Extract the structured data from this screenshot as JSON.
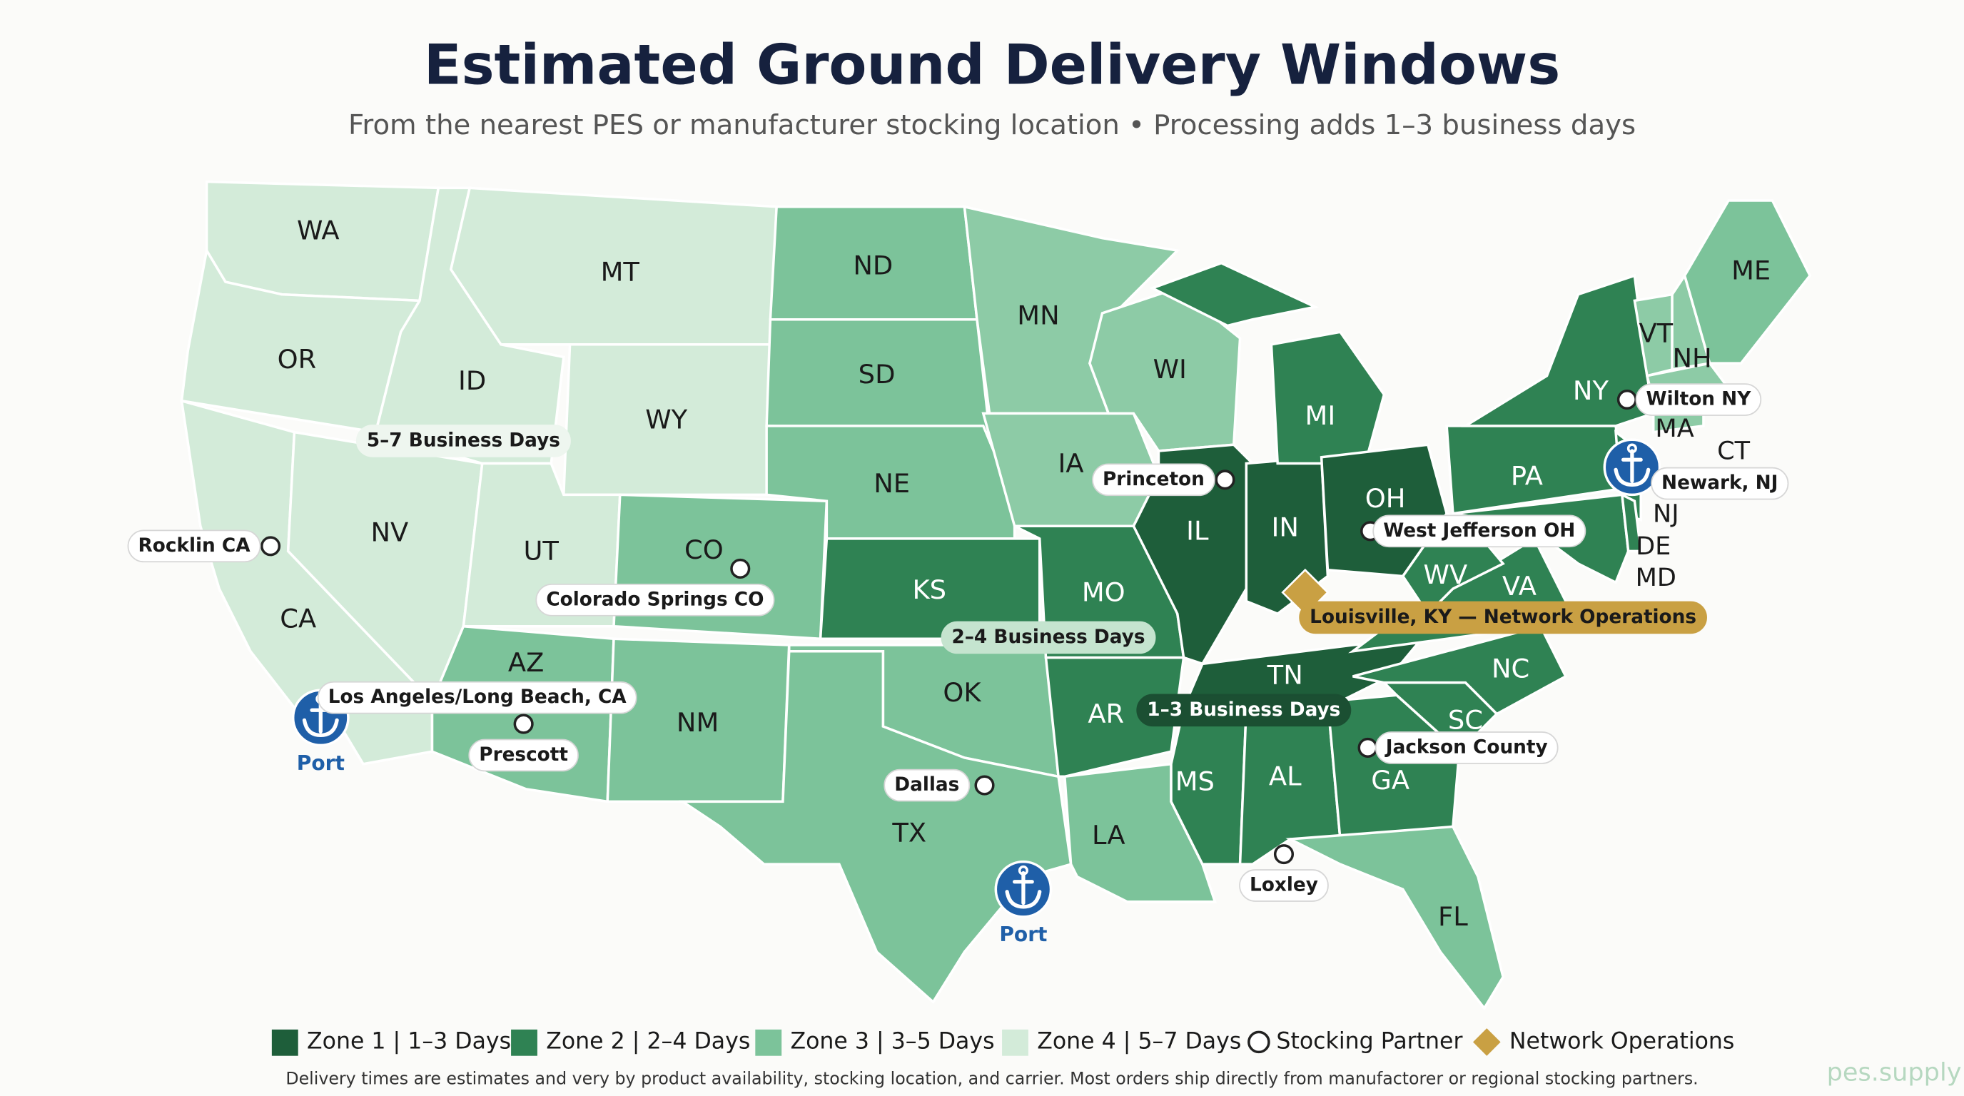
{
  "header": {
    "title": "Estimated Ground Delivery Windows",
    "subtitle": "From the nearest PES or manufacturer stocking location • Processing adds 1–3 business days"
  },
  "map": {
    "states": [
      {
        "label": "WA",
        "color": "#d3ebd9"
      },
      {
        "label": "OR",
        "color": "#d3ebd9"
      },
      {
        "label": "CA",
        "color": "#d3ebd9"
      },
      {
        "label": "NV",
        "color": "#d3ebd9"
      },
      {
        "label": "ID",
        "color": "#d3ebd9"
      },
      {
        "label": "MT",
        "color": "#d3ebd9"
      },
      {
        "label": "WY",
        "color": "#d3ebd9"
      },
      {
        "label": "UT",
        "color": "#d3ebd9"
      },
      {
        "label": "CO",
        "color": "#7cc39a"
      },
      {
        "label": "AZ",
        "color": "#7cc39a"
      },
      {
        "label": "NM",
        "color": "#7cc39a"
      },
      {
        "label": "ND",
        "color": "#7cc39a"
      },
      {
        "label": "SD",
        "color": "#7cc39a"
      },
      {
        "label": "NE",
        "color": "#7cc39a"
      },
      {
        "label": "KS",
        "color": "#2f8253"
      },
      {
        "label": "OK",
        "color": "#7cc39a"
      },
      {
        "label": "TX",
        "color": "#7cc39a"
      },
      {
        "label": "MN",
        "color": "#8dcba6"
      },
      {
        "label": "IA",
        "color": "#8dcba6"
      },
      {
        "label": "MO",
        "color": "#2f8253"
      },
      {
        "label": "AR",
        "color": "#2f8253"
      },
      {
        "label": "LA",
        "color": "#7cc39a"
      },
      {
        "label": "WI",
        "color": "#8dcba6"
      },
      {
        "label": "IL",
        "color": "#1e5e3a"
      },
      {
        "label": "IN",
        "color": "#1e5e3a"
      },
      {
        "label": "MI",
        "color": "#2f8253"
      },
      {
        "label": "OH",
        "color": "#1e5e3a"
      },
      {
        "label": "TN",
        "color": "#1e5e3a"
      },
      {
        "label": "MS",
        "color": "#2f8253"
      },
      {
        "label": "AL",
        "color": "#2f8253"
      },
      {
        "label": "GA",
        "color": "#2f8253"
      },
      {
        "label": "FL",
        "color": "#7cc39a"
      },
      {
        "label": "SC",
        "color": "#2f8253"
      },
      {
        "label": "NC",
        "color": "#2f8253"
      },
      {
        "label": "VA",
        "color": "#2f8253"
      },
      {
        "label": "WV",
        "color": "#2f8253"
      },
      {
        "label": "PA",
        "color": "#2f8253"
      },
      {
        "label": "NY",
        "color": "#2f8253"
      },
      {
        "label": "NJ",
        "color": "#2f8253"
      },
      {
        "label": "MD",
        "color": "#2f8253"
      },
      {
        "label": "DE",
        "color": "#2f8253"
      },
      {
        "label": "VT",
        "color": "#8dcba6"
      },
      {
        "label": "NH",
        "color": "#8dcba6"
      },
      {
        "label": "MA",
        "color": "#8dcba6"
      },
      {
        "label": "CT",
        "color": "#8dcba6"
      },
      {
        "label": "ME",
        "color": "#7cc39a"
      }
    ],
    "zone_labels": [
      "5–7 Business Days",
      "2–4 Business Days",
      "1–3 Business Days"
    ],
    "stocking_partners": [
      "Rocklin CA",
      "Colorado Springs CO",
      "Prescott",
      "Dallas",
      "Princeton",
      "West Jefferson OH",
      "Jackson County",
      "Loxley",
      "Wilton NY"
    ],
    "ports": [
      {
        "label": "Los Angeles/Long Beach, CA",
        "caption": "Port"
      },
      {
        "caption": "Port"
      },
      {
        "label": "Newark, NJ"
      }
    ],
    "network_operations": "Louisville, KY — Network Operations"
  },
  "legend": [
    {
      "label": "Zone 1 | 1–3 Days",
      "color": "#1e5e3a"
    },
    {
      "label": "Zone 2 | 2–4 Days",
      "color": "#2f8253"
    },
    {
      "label": "Zone 3 | 3–5 Days",
      "color": "#7cc39a"
    },
    {
      "label": "Zone 4 | 5–7 Days",
      "color": "#d3ebd9"
    },
    {
      "label": "Stocking Partner"
    },
    {
      "label": "Network Operations",
      "color": "#c9a043"
    }
  ],
  "footnote": "Delivery times are estimates and very by product availability, stocking location, and carrier. Most orders ship directly from manufactorer or regional stocking partners.",
  "watermark": "pes.supply"
}
